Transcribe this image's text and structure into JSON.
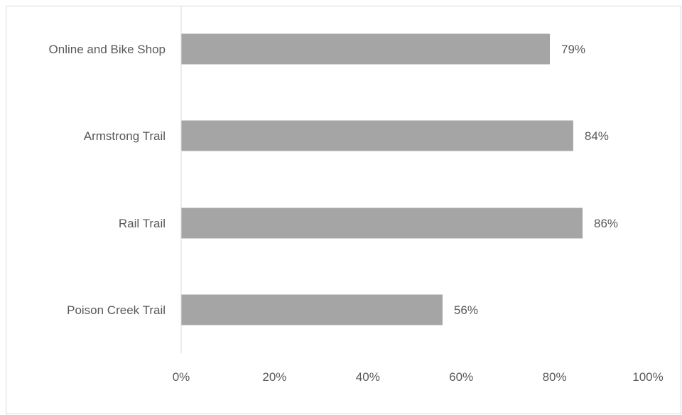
{
  "chart_data": {
    "type": "bar",
    "orientation": "horizontal",
    "categories": [
      "Online and Bike Shop",
      "Armstrong Trail",
      "Rail Trail",
      "Poison Creek Trail"
    ],
    "values": [
      79,
      84,
      86,
      56
    ],
    "data_labels": [
      "79%",
      "84%",
      "86%",
      "56%"
    ],
    "xlim": [
      0,
      100
    ],
    "x_ticks": [
      0,
      20,
      40,
      60,
      80,
      100
    ],
    "x_tick_labels": [
      "0%",
      "20%",
      "40%",
      "60%",
      "80%",
      "100%"
    ],
    "grid": false,
    "legend": "none",
    "bar_color": "#a5a5a5",
    "axis_color": "#d9d9d9",
    "text_color": "#595959"
  }
}
